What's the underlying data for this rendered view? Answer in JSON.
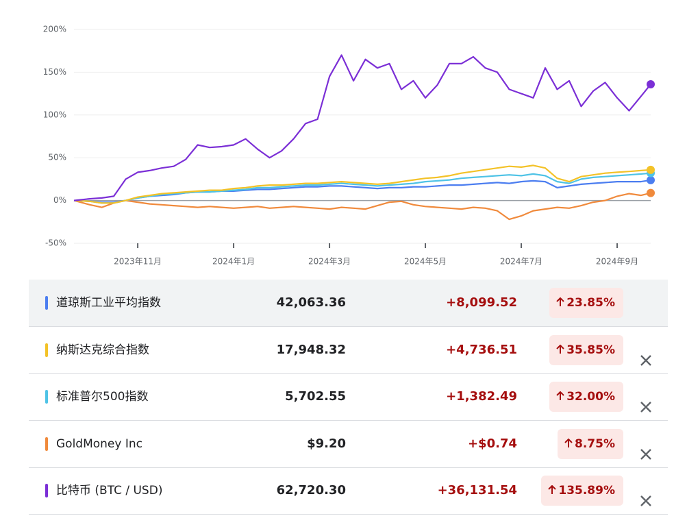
{
  "chart_data": {
    "type": "line",
    "x": [
      -0.33,
      0,
      0.25,
      0.5,
      0.75,
      1,
      1.25,
      1.5,
      1.75,
      2,
      2.25,
      2.5,
      2.75,
      3,
      3.25,
      3.5,
      3.75,
      4,
      4.25,
      4.5,
      4.75,
      5,
      5.25,
      5.5,
      5.75,
      6,
      6.25,
      6.5,
      6.75,
      7,
      7.25,
      7.5,
      7.75,
      8,
      8.25,
      8.5,
      8.75,
      9,
      9.25,
      9.5,
      9.75,
      10,
      10.25,
      10.5,
      10.75,
      11,
      11.25,
      11.5,
      11.7
    ],
    "xlim": [
      -0.33,
      11.7
    ],
    "xticks": [
      {
        "value": 1,
        "label": "2023年11月"
      },
      {
        "value": 3,
        "label": "2024年1月"
      },
      {
        "value": 5,
        "label": "2024年3月"
      },
      {
        "value": 7,
        "label": "2024年5月"
      },
      {
        "value": 9,
        "label": "2024年7月"
      },
      {
        "value": 11,
        "label": "2024年9月"
      }
    ],
    "ylim": [
      -50,
      200
    ],
    "yticks": [
      {
        "value": -50,
        "label": "-50%"
      },
      {
        "value": 0,
        "label": "0%"
      },
      {
        "value": 50,
        "label": "50%"
      },
      {
        "value": 100,
        "label": "100%"
      },
      {
        "value": 150,
        "label": "150%"
      },
      {
        "value": 200,
        "label": "200%"
      }
    ],
    "grid": true,
    "series": [
      {
        "name": "道琼斯工业平均指数",
        "color": "#4c7ef0",
        "values": [
          0,
          -1,
          -2,
          -2,
          0,
          3,
          5,
          6,
          7,
          9,
          10,
          10,
          11,
          11,
          12,
          13,
          13,
          14,
          15,
          16,
          16,
          17,
          17,
          16,
          15,
          14,
          15,
          15,
          16,
          16,
          17,
          18,
          18,
          19,
          20,
          21,
          20,
          22,
          23,
          22,
          15,
          17,
          19,
          20,
          21,
          22,
          22,
          22,
          23.85
        ]
      },
      {
        "name": "纳斯达克综合指数",
        "color": "#f3c228",
        "values": [
          0,
          -1,
          -3,
          -3,
          0,
          4,
          6,
          8,
          9,
          10,
          11,
          12,
          12,
          14,
          15,
          17,
          18,
          18,
          19,
          20,
          20,
          21,
          22,
          21,
          20,
          19,
          20,
          22,
          24,
          26,
          27,
          29,
          32,
          34,
          36,
          38,
          40,
          39,
          41,
          38,
          26,
          22,
          28,
          30,
          32,
          33,
          34,
          35,
          35.85
        ]
      },
      {
        "name": "标准普尔500指数",
        "color": "#4fc3e6",
        "values": [
          0,
          -1,
          -3,
          -3,
          0,
          3,
          5,
          7,
          8,
          9,
          10,
          10,
          11,
          12,
          13,
          15,
          15,
          16,
          17,
          18,
          18,
          19,
          20,
          19,
          18,
          17,
          18,
          19,
          20,
          22,
          23,
          24,
          26,
          27,
          28,
          29,
          30,
          29,
          31,
          29,
          22,
          20,
          25,
          27,
          28,
          29,
          30,
          31,
          32
        ]
      },
      {
        "name": "GoldMoney Inc",
        "color": "#f08a3c",
        "values": [
          0,
          -5,
          -8,
          -3,
          0,
          -2,
          -4,
          -5,
          -6,
          -7,
          -8,
          -7,
          -8,
          -9,
          -8,
          -7,
          -9,
          -8,
          -7,
          -8,
          -9,
          -10,
          -8,
          -9,
          -10,
          -6,
          -2,
          -1,
          -5,
          -7,
          -8,
          -9,
          -10,
          -8,
          -9,
          -12,
          -22,
          -18,
          -12,
          -10,
          -8,
          -9,
          -6,
          -2,
          0,
          5,
          8,
          6,
          8.75
        ]
      },
      {
        "name": "比特币 (BTC / USD)",
        "color": "#7b2fd6",
        "values": [
          0,
          2,
          3,
          5,
          25,
          33,
          35,
          38,
          40,
          48,
          65,
          62,
          63,
          65,
          72,
          60,
          50,
          58,
          72,
          90,
          95,
          145,
          170,
          140,
          165,
          155,
          160,
          130,
          140,
          120,
          135,
          160,
          160,
          168,
          155,
          150,
          130,
          125,
          120,
          155,
          130,
          140,
          110,
          128,
          138,
          120,
          105,
          122,
          135.89
        ]
      }
    ]
  },
  "table": {
    "rows": [
      {
        "price": "42,063.36",
        "change": "+8,099.52",
        "percent": "23.85%",
        "removable": false
      },
      {
        "price": "17,948.32",
        "change": "+4,736.51",
        "percent": "35.85%",
        "removable": true
      },
      {
        "price": "5,702.55",
        "change": "+1,382.49",
        "percent": "32.00%",
        "removable": true
      },
      {
        "price": "$9.20",
        "change": "+$0.74",
        "percent": "8.75%",
        "removable": true
      },
      {
        "price": "62,720.30",
        "change": "+36,131.54",
        "percent": "135.89%",
        "removable": true
      }
    ]
  }
}
